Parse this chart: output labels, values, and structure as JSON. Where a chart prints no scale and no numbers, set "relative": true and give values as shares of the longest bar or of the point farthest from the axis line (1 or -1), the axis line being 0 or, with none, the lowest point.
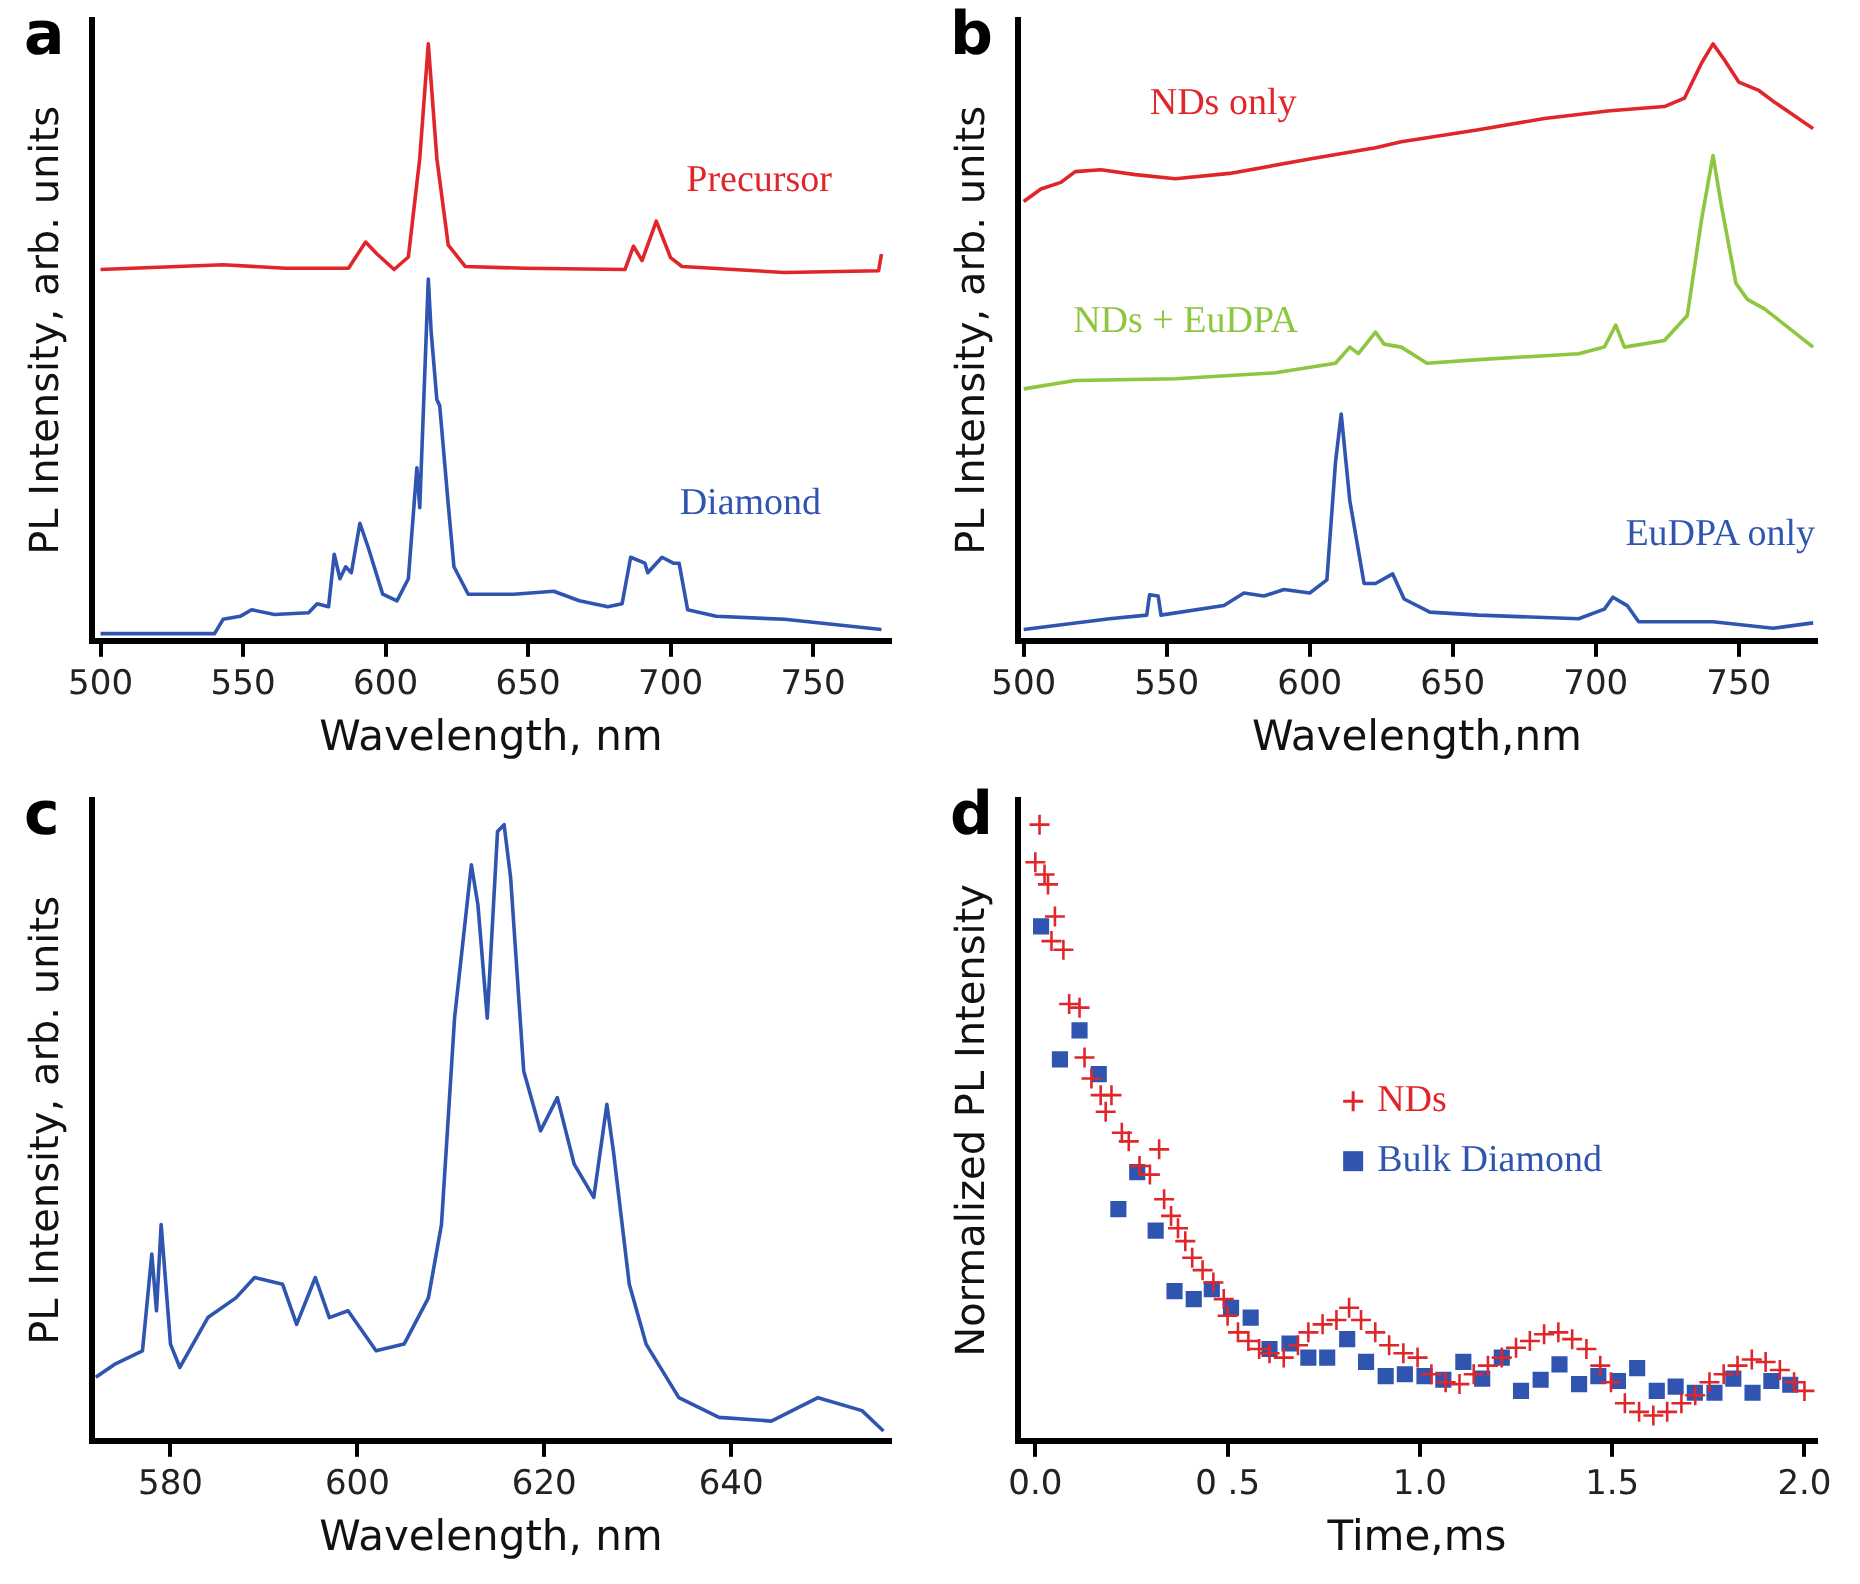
{
  "chart_data": [
    {
      "type": "line",
      "title": "a",
      "xlabel": "Wavelength, nm",
      "ylabel": "PL Intensity, arb. units",
      "relative": true,
      "xlim": [
        497,
        777
      ],
      "xticks": [
        500,
        550,
        600,
        650,
        700,
        750
      ],
      "grid": false,
      "legend": false,
      "series": [
        {
          "name": "Precursor",
          "color": "#e0262b",
          "x": [
            500,
            543,
            565,
            587,
            593,
            597,
            603,
            608,
            612,
            615,
            618,
            622,
            628,
            649,
            684,
            687,
            690,
            695,
            700,
            704,
            740,
            773,
            774
          ],
          "values": [
            0.622,
            0.63,
            0.624,
            0.624,
            0.668,
            0.648,
            0.622,
            0.643,
            0.808,
            1.0,
            0.808,
            0.663,
            0.627,
            0.624,
            0.622,
            0.661,
            0.637,
            0.703,
            0.642,
            0.627,
            0.617,
            0.62,
            0.648
          ]
        },
        {
          "name": "Diamond",
          "color": "#2f55b0",
          "x": [
            500,
            540,
            543,
            549,
            553,
            561,
            573,
            576,
            580,
            582,
            584,
            586,
            588,
            591,
            594,
            599,
            604,
            608,
            611,
            612,
            615,
            616,
            618,
            619,
            622,
            624,
            629,
            645,
            659,
            668,
            678,
            683,
            686,
            691,
            692,
            697,
            701,
            703,
            706,
            716,
            740,
            774
          ],
          "values": [
            0.012,
            0.012,
            0.036,
            0.041,
            0.052,
            0.044,
            0.047,
            0.062,
            0.057,
            0.145,
            0.104,
            0.124,
            0.114,
            0.197,
            0.155,
            0.078,
            0.067,
            0.104,
            0.29,
            0.223,
            0.606,
            0.518,
            0.404,
            0.394,
            0.228,
            0.124,
            0.078,
            0.078,
            0.083,
            0.067,
            0.057,
            0.062,
            0.14,
            0.13,
            0.114,
            0.14,
            0.13,
            0.13,
            0.052,
            0.041,
            0.036,
            0.019
          ]
        }
      ]
    },
    {
      "type": "line",
      "title": "b",
      "xlabel": "Wavelength,nm",
      "ylabel": "PL Intensity, arb. units",
      "relative": true,
      "xlim": [
        498,
        777
      ],
      "xticks": [
        500,
        550,
        600,
        650,
        700,
        750
      ],
      "grid": false,
      "legend": false,
      "series": [
        {
          "name": "NDs only",
          "color": "#e0262b",
          "x": [
            500,
            506,
            513,
            518,
            527,
            539,
            553,
            572,
            600,
            623,
            632,
            659,
            682,
            705,
            724,
            731,
            737,
            741,
            745,
            750,
            757,
            762,
            776
          ],
          "values": [
            0.736,
            0.757,
            0.768,
            0.786,
            0.789,
            0.781,
            0.774,
            0.783,
            0.807,
            0.826,
            0.836,
            0.856,
            0.875,
            0.888,
            0.895,
            0.909,
            0.968,
            1.0,
            0.973,
            0.936,
            0.922,
            0.904,
            0.858
          ]
        },
        {
          "name": "NDs + EuDPA",
          "color": "#8dc63f",
          "x": [
            500,
            518,
            553,
            588,
            609,
            614,
            617,
            623,
            626,
            632,
            641,
            659,
            694,
            703,
            707,
            710,
            724,
            732,
            737,
            741,
            744,
            749,
            753,
            759,
            776
          ],
          "values": [
            0.422,
            0.436,
            0.439,
            0.449,
            0.465,
            0.492,
            0.481,
            0.517,
            0.497,
            0.492,
            0.465,
            0.471,
            0.481,
            0.492,
            0.529,
            0.492,
            0.503,
            0.545,
            0.706,
            0.813,
            0.727,
            0.599,
            0.572,
            0.556,
            0.492
          ]
        },
        {
          "name": "EuDPA only",
          "color": "#2f55b0",
          "x": [
            500,
            530,
            543,
            544,
            547,
            548,
            570,
            577,
            584,
            591,
            600,
            606,
            609,
            611,
            614,
            619,
            623,
            629,
            633,
            642,
            659,
            694,
            703,
            706,
            711,
            715,
            741,
            762,
            776
          ],
          "values": [
            0.019,
            0.037,
            0.043,
            0.077,
            0.075,
            0.043,
            0.059,
            0.08,
            0.075,
            0.086,
            0.08,
            0.102,
            0.299,
            0.38,
            0.235,
            0.096,
            0.096,
            0.112,
            0.07,
            0.048,
            0.043,
            0.037,
            0.053,
            0.073,
            0.059,
            0.032,
            0.032,
            0.021,
            0.03
          ]
        }
      ]
    },
    {
      "type": "line",
      "title": "c",
      "xlabel": "Wavelength, nm",
      "ylabel": "PL Intensity, arb. units",
      "relative": true,
      "xlim": [
        571.6,
        657
      ],
      "xticks": [
        580,
        600,
        620,
        640
      ],
      "grid": false,
      "legend": false,
      "series": [
        {
          "color": "#2f55b0",
          "x": [
            572,
            574,
            577,
            578,
            578.5,
            579,
            580,
            581,
            584,
            587,
            589,
            592,
            593.5,
            595.5,
            597,
            599,
            602,
            605,
            607.6,
            609,
            610.4,
            612.2,
            612.9,
            613.9,
            615,
            615.7,
            616.4,
            617.8,
            619.6,
            621.4,
            623.2,
            625.3,
            626.7,
            627.4,
            629.1,
            630.9,
            634.4,
            638.7,
            644.3,
            649.3,
            654,
            656.3
          ],
          "values": [
            0.103,
            0.124,
            0.146,
            0.303,
            0.211,
            0.351,
            0.157,
            0.119,
            0.2,
            0.232,
            0.265,
            0.254,
            0.189,
            0.265,
            0.2,
            0.211,
            0.146,
            0.157,
            0.232,
            0.351,
            0.686,
            0.935,
            0.87,
            0.686,
            0.989,
            1.0,
            0.914,
            0.6,
            0.503,
            0.557,
            0.449,
            0.395,
            0.546,
            0.47,
            0.254,
            0.157,
            0.07,
            0.038,
            0.032,
            0.07,
            0.049,
            0.016
          ]
        }
      ]
    },
    {
      "type": "scatter",
      "title": "d",
      "xlabel": "Time,ms",
      "ylabel": "Normalized PL Intensity",
      "relative": true,
      "xlim": [
        -0.045,
        2.03
      ],
      "xticks": [
        {
          "value": 0,
          "label": "0.0"
        },
        {
          "value": 0.5,
          "label": "0 .5"
        },
        {
          "value": 1,
          "label": "1.0"
        },
        {
          "value": 1.5,
          "label": "1.5"
        },
        {
          "value": 2,
          "label": "2.0"
        }
      ],
      "grid": false,
      "legend": "center",
      "series": [
        {
          "name": "NDs",
          "color": "#e0262b",
          "marker": "cross",
          "x": [
            0.011,
            0,
            0.024,
            0.033,
            0.051,
            0.042,
            0.073,
            0.088,
            0.115,
            0.128,
            0.146,
            0.17,
            0.198,
            0.183,
            0.225,
            0.243,
            0.271,
            0.298,
            0.322,
            0.335,
            0.353,
            0.371,
            0.39,
            0.408,
            0.435,
            0.463,
            0.49,
            0.5,
            0.527,
            0.554,
            0.582,
            0.609,
            0.646,
            0.683,
            0.71,
            0.747,
            0.783,
            0.816,
            0.847,
            0.884,
            0.92,
            0.957,
            0.994,
            1.03,
            1.067,
            1.103,
            1.14,
            1.177,
            1.213,
            1.25,
            1.286,
            1.323,
            1.36,
            1.396,
            1.433,
            1.469,
            1.497,
            1.533,
            1.57,
            1.607,
            1.643,
            1.68,
            1.716,
            1.753,
            1.79,
            1.826,
            1.863,
            1.899,
            1.936,
            1.973,
            2.0
          ],
          "values": [
            1.0,
            0.939,
            0.919,
            0.903,
            0.851,
            0.811,
            0.797,
            0.709,
            0.703,
            0.622,
            0.588,
            0.561,
            0.561,
            0.534,
            0.5,
            0.486,
            0.446,
            0.432,
            0.473,
            0.392,
            0.365,
            0.345,
            0.324,
            0.297,
            0.277,
            0.257,
            0.23,
            0.203,
            0.176,
            0.162,
            0.149,
            0.142,
            0.135,
            0.155,
            0.176,
            0.189,
            0.196,
            0.216,
            0.196,
            0.176,
            0.155,
            0.142,
            0.135,
            0.108,
            0.095,
            0.092,
            0.108,
            0.122,
            0.135,
            0.151,
            0.162,
            0.173,
            0.176,
            0.165,
            0.149,
            0.122,
            0.095,
            0.061,
            0.047,
            0.041,
            0.047,
            0.061,
            0.074,
            0.095,
            0.108,
            0.122,
            0.132,
            0.128,
            0.115,
            0.095,
            0.081
          ]
        },
        {
          "name": "Bulk Diamond",
          "color": "#2f55b0",
          "marker": "square",
          "x": [
            0.015,
            0.064,
            0.115,
            0.165,
            0.216,
            0.265,
            0.313,
            0.362,
            0.412,
            0.459,
            0.509,
            0.56,
            0.609,
            0.661,
            0.71,
            0.759,
            0.811,
            0.86,
            0.911,
            0.961,
            1.012,
            1.061,
            1.113,
            1.162,
            1.213,
            1.263,
            1.314,
            1.363,
            1.414,
            1.464,
            1.515,
            1.565,
            1.616,
            1.665,
            1.715,
            1.766,
            1.815,
            1.865,
            1.914,
            1.963
          ],
          "values": [
            0.835,
            0.619,
            0.666,
            0.595,
            0.376,
            0.436,
            0.341,
            0.243,
            0.23,
            0.246,
            0.216,
            0.2,
            0.149,
            0.158,
            0.135,
            0.135,
            0.165,
            0.128,
            0.105,
            0.108,
            0.105,
            0.099,
            0.128,
            0.101,
            0.135,
            0.081,
            0.099,
            0.124,
            0.092,
            0.105,
            0.097,
            0.118,
            0.081,
            0.088,
            0.078,
            0.078,
            0.101,
            0.078,
            0.097,
            0.091
          ]
        }
      ]
    }
  ]
}
